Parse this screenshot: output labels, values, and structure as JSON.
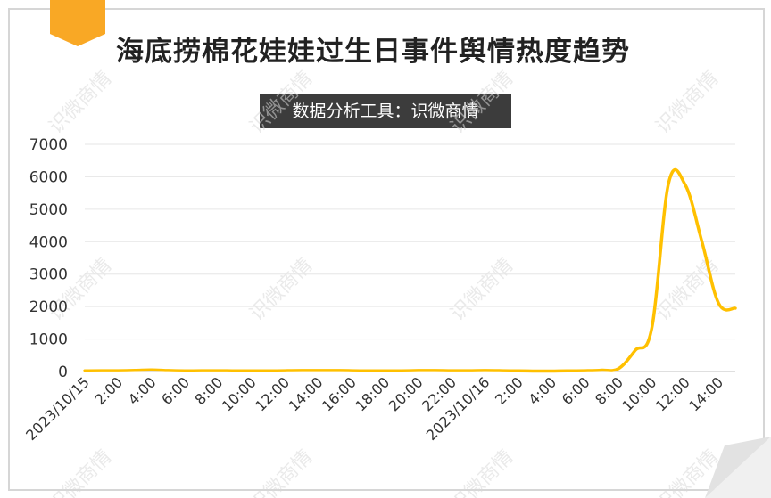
{
  "header": {
    "title": "海底捞棉花娃娃过生日事件舆情热度趋势",
    "source": "数据分析工具：识微商情"
  },
  "watermark": {
    "text": "识微商情"
  },
  "colors": {
    "line": "#FFC000",
    "accent": "#F9A825",
    "frame": "#d6d6d6",
    "badge": "#3c3c3c"
  },
  "chart_data": {
    "type": "line",
    "title": "海底捞棉花娃娃过生日事件舆情热度趋势",
    "xlabel": "",
    "ylabel": "",
    "ylim": [
      0,
      7000
    ],
    "y_ticks": [
      0,
      1000,
      2000,
      3000,
      4000,
      5000,
      6000,
      7000
    ],
    "x_tick_labels": [
      "2023/10/15",
      "2:00",
      "4:00",
      "6:00",
      "8:00",
      "10:00",
      "12:00",
      "14:00",
      "16:00",
      "18:00",
      "20:00",
      "22:00",
      "2023/10/16",
      "2:00",
      "4:00",
      "6:00",
      "8:00",
      "10:00",
      "12:00",
      "14:00"
    ],
    "x": [
      "2023/10/15 0:00",
      "1:00",
      "2:00",
      "3:00",
      "4:00",
      "5:00",
      "6:00",
      "7:00",
      "8:00",
      "9:00",
      "10:00",
      "11:00",
      "12:00",
      "13:00",
      "14:00",
      "15:00",
      "16:00",
      "17:00",
      "18:00",
      "19:00",
      "20:00",
      "21:00",
      "22:00",
      "23:00",
      "2023/10/16 0:00",
      "1:00",
      "2:00",
      "3:00",
      "4:00",
      "5:00",
      "6:00",
      "7:00",
      "8:00",
      "9:00",
      "10:00",
      "11:00",
      "12:00",
      "13:00",
      "14:00",
      "15:00"
    ],
    "series": [
      {
        "values": [
          20,
          25,
          25,
          35,
          50,
          30,
          20,
          25,
          25,
          20,
          20,
          20,
          25,
          30,
          30,
          30,
          25,
          20,
          20,
          20,
          30,
          30,
          25,
          25,
          30,
          25,
          20,
          15,
          15,
          20,
          25,
          40,
          90,
          650,
          1350,
          5800,
          5750,
          4000,
          2100,
          1950
        ]
      }
    ],
    "grid": true,
    "legend": "none"
  }
}
